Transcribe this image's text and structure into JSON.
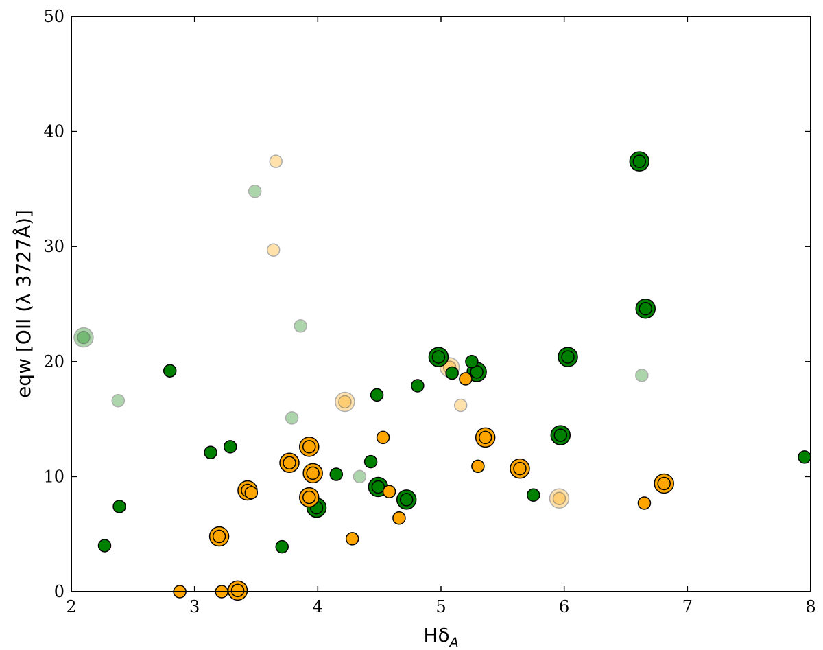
{
  "chart_data": {
    "type": "scatter",
    "title": "",
    "xlabel": "Hδ",
    "xlabel_sub": "A",
    "ylabel": "eqw [OII (λ 3727Å)]",
    "xlim": [
      2,
      8
    ],
    "ylim": [
      0,
      50
    ],
    "x_ticks": [
      "2",
      "3",
      "4",
      "5",
      "6",
      "7",
      "8"
    ],
    "y_ticks": [
      "0",
      "10",
      "20",
      "30",
      "40",
      "50"
    ],
    "grid": false,
    "colors": {
      "green": "#008000",
      "orange": "#ffa500"
    },
    "series": [
      {
        "color": "green",
        "points": [
          {
            "x": 2.27,
            "y": 4.0,
            "style": "small"
          },
          {
            "x": 2.39,
            "y": 7.4,
            "style": "small"
          },
          {
            "x": 2.8,
            "y": 19.2,
            "style": "small"
          },
          {
            "x": 3.13,
            "y": 12.1,
            "style": "small"
          },
          {
            "x": 3.29,
            "y": 12.6,
            "style": "small"
          },
          {
            "x": 3.71,
            "y": 3.9,
            "style": "small"
          },
          {
            "x": 4.15,
            "y": 10.2,
            "style": "small"
          },
          {
            "x": 4.43,
            "y": 11.3,
            "style": "small"
          },
          {
            "x": 4.48,
            "y": 17.1,
            "style": "small"
          },
          {
            "x": 4.81,
            "y": 17.9,
            "style": "small"
          },
          {
            "x": 5.09,
            "y": 19.0,
            "style": "small"
          },
          {
            "x": 5.25,
            "y": 20.0,
            "style": "small"
          },
          {
            "x": 5.75,
            "y": 8.4,
            "style": "small"
          },
          {
            "x": 7.95,
            "y": 11.7,
            "style": "small"
          },
          {
            "x": 3.99,
            "y": 7.3,
            "style": "ringed"
          },
          {
            "x": 4.49,
            "y": 9.1,
            "style": "ringed"
          },
          {
            "x": 4.72,
            "y": 8.0,
            "style": "ringed"
          },
          {
            "x": 4.98,
            "y": 20.4,
            "style": "ringed"
          },
          {
            "x": 5.29,
            "y": 19.1,
            "style": "ringed"
          },
          {
            "x": 5.97,
            "y": 13.6,
            "style": "ringed"
          },
          {
            "x": 6.03,
            "y": 20.4,
            "style": "ringed"
          },
          {
            "x": 6.61,
            "y": 37.4,
            "style": "ringed"
          },
          {
            "x": 6.66,
            "y": 24.6,
            "style": "ringed"
          },
          {
            "x": 2.38,
            "y": 16.6,
            "style": "faded"
          },
          {
            "x": 3.49,
            "y": 34.8,
            "style": "faded"
          },
          {
            "x": 3.79,
            "y": 15.1,
            "style": "faded"
          },
          {
            "x": 3.86,
            "y": 23.1,
            "style": "faded"
          },
          {
            "x": 4.34,
            "y": 10.0,
            "style": "faded"
          },
          {
            "x": 6.63,
            "y": 18.8,
            "style": "faded"
          },
          {
            "x": 2.1,
            "y": 22.1,
            "style": "faded-ringed"
          }
        ]
      },
      {
        "color": "orange",
        "points": [
          {
            "x": 2.88,
            "y": 0.0,
            "style": "small"
          },
          {
            "x": 3.22,
            "y": 0.0,
            "style": "small"
          },
          {
            "x": 3.46,
            "y": 8.6,
            "style": "small"
          },
          {
            "x": 4.28,
            "y": 4.6,
            "style": "small"
          },
          {
            "x": 4.53,
            "y": 13.4,
            "style": "small"
          },
          {
            "x": 4.58,
            "y": 8.7,
            "style": "small"
          },
          {
            "x": 4.66,
            "y": 6.4,
            "style": "small"
          },
          {
            "x": 5.2,
            "y": 18.5,
            "style": "small"
          },
          {
            "x": 5.3,
            "y": 10.9,
            "style": "small"
          },
          {
            "x": 6.65,
            "y": 7.7,
            "style": "small"
          },
          {
            "x": 3.2,
            "y": 4.8,
            "style": "ringed"
          },
          {
            "x": 3.35,
            "y": 0.1,
            "style": "ringed"
          },
          {
            "x": 3.43,
            "y": 8.8,
            "style": "ringed"
          },
          {
            "x": 3.77,
            "y": 11.2,
            "style": "ringed"
          },
          {
            "x": 3.93,
            "y": 12.6,
            "style": "ringed"
          },
          {
            "x": 3.93,
            "y": 8.2,
            "style": "ringed"
          },
          {
            "x": 3.96,
            "y": 10.3,
            "style": "ringed"
          },
          {
            "x": 5.36,
            "y": 13.4,
            "style": "ringed"
          },
          {
            "x": 5.64,
            "y": 10.7,
            "style": "ringed"
          },
          {
            "x": 6.81,
            "y": 9.4,
            "style": "ringed"
          },
          {
            "x": 3.64,
            "y": 29.7,
            "style": "faded"
          },
          {
            "x": 3.66,
            "y": 37.4,
            "style": "faded"
          },
          {
            "x": 5.16,
            "y": 16.2,
            "style": "faded"
          },
          {
            "x": 4.22,
            "y": 16.5,
            "style": "faded-ringed"
          },
          {
            "x": 5.07,
            "y": 19.5,
            "style": "faded-ringed"
          },
          {
            "x": 5.96,
            "y": 8.1,
            "style": "faded-ringed"
          }
        ]
      }
    ]
  }
}
